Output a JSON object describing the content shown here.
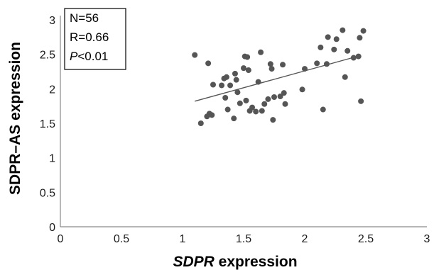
{
  "chart_data": {
    "type": "scatter",
    "xlabel_italic": "SDPR",
    "xlabel_rest": " expression",
    "ylabel": "SDPR–AS expression",
    "xlim": [
      0,
      3
    ],
    "ylim": [
      0,
      3
    ],
    "x_ticks": [
      "0",
      "0.5",
      "1",
      "1.5",
      "2",
      "2.5",
      "3"
    ],
    "y_ticks": [
      "0",
      "0.5",
      "1",
      "1.5",
      "2",
      "2.5",
      "3"
    ],
    "grid": false,
    "colors": {
      "points": "#555555",
      "trend_line": "#555555",
      "axis": "#8a8a8a"
    },
    "stats_box": {
      "position": "top-left",
      "n_text": "N=56",
      "r_text": "R=0.66",
      "p_italic": "P",
      "p_rest": "<0.01"
    },
    "trend_line": {
      "x": [
        1.1,
        2.45
      ],
      "y": [
        1.82,
        2.48
      ]
    },
    "points": [
      {
        "x": 1.1,
        "y": 2.49
      },
      {
        "x": 1.15,
        "y": 1.5
      },
      {
        "x": 1.2,
        "y": 1.6
      },
      {
        "x": 1.21,
        "y": 2.37
      },
      {
        "x": 1.22,
        "y": 1.64
      },
      {
        "x": 1.24,
        "y": 1.62
      },
      {
        "x": 1.25,
        "y": 2.06
      },
      {
        "x": 1.32,
        "y": 2.05
      },
      {
        "x": 1.34,
        "y": 2.15
      },
      {
        "x": 1.35,
        "y": 1.87
      },
      {
        "x": 1.36,
        "y": 2.17
      },
      {
        "x": 1.37,
        "y": 1.7
      },
      {
        "x": 1.39,
        "y": 2.05
      },
      {
        "x": 1.42,
        "y": 1.57
      },
      {
        "x": 1.43,
        "y": 2.22
      },
      {
        "x": 1.44,
        "y": 2.13
      },
      {
        "x": 1.45,
        "y": 1.95
      },
      {
        "x": 1.47,
        "y": 1.79
      },
      {
        "x": 1.5,
        "y": 2.3
      },
      {
        "x": 1.51,
        "y": 2.47
      },
      {
        "x": 1.52,
        "y": 1.83
      },
      {
        "x": 1.53,
        "y": 2.46
      },
      {
        "x": 1.54,
        "y": 2.27
      },
      {
        "x": 1.55,
        "y": 1.68
      },
      {
        "x": 1.57,
        "y": 1.73
      },
      {
        "x": 1.6,
        "y": 1.67
      },
      {
        "x": 1.62,
        "y": 2.1
      },
      {
        "x": 1.64,
        "y": 2.53
      },
      {
        "x": 1.65,
        "y": 1.68
      },
      {
        "x": 1.67,
        "y": 1.78
      },
      {
        "x": 1.7,
        "y": 1.85
      },
      {
        "x": 1.72,
        "y": 2.36
      },
      {
        "x": 1.73,
        "y": 2.29
      },
      {
        "x": 1.74,
        "y": 1.55
      },
      {
        "x": 1.75,
        "y": 1.88
      },
      {
        "x": 1.8,
        "y": 1.89
      },
      {
        "x": 1.82,
        "y": 2.35
      },
      {
        "x": 1.83,
        "y": 1.94
      },
      {
        "x": 1.84,
        "y": 1.78
      },
      {
        "x": 1.98,
        "y": 1.99
      },
      {
        "x": 2.0,
        "y": 2.29
      },
      {
        "x": 2.1,
        "y": 2.37
      },
      {
        "x": 2.13,
        "y": 2.6
      },
      {
        "x": 2.15,
        "y": 1.7
      },
      {
        "x": 2.18,
        "y": 2.36
      },
      {
        "x": 2.19,
        "y": 2.75
      },
      {
        "x": 2.24,
        "y": 2.57
      },
      {
        "x": 2.26,
        "y": 2.72
      },
      {
        "x": 2.31,
        "y": 2.85
      },
      {
        "x": 2.33,
        "y": 2.17
      },
      {
        "x": 2.35,
        "y": 2.55
      },
      {
        "x": 2.4,
        "y": 2.45
      },
      {
        "x": 2.44,
        "y": 2.47
      },
      {
        "x": 2.45,
        "y": 2.74
      },
      {
        "x": 2.46,
        "y": 1.82
      },
      {
        "x": 2.48,
        "y": 2.84
      }
    ]
  }
}
